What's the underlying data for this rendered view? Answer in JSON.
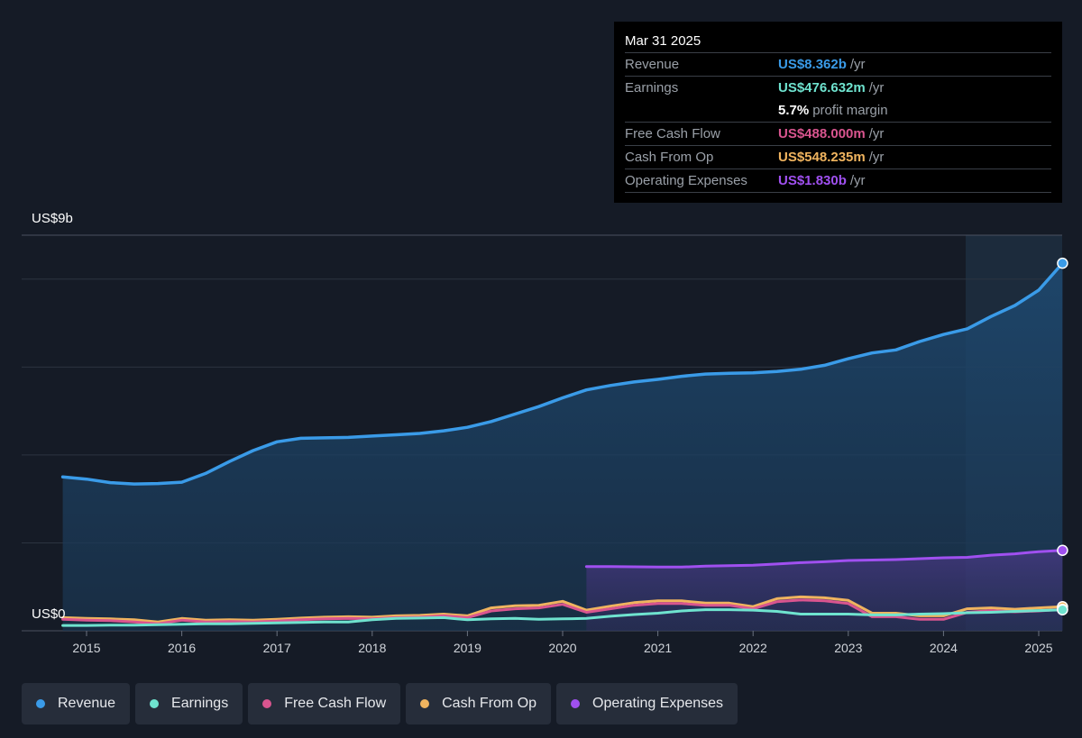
{
  "tooltip": {
    "date": "Mar 31 2025",
    "rows": [
      {
        "label": "Revenue",
        "value": "US$8.362b",
        "unit": "/yr",
        "color": "#3a9be8"
      },
      {
        "label": "Earnings",
        "value": "US$476.632m",
        "unit": "/yr",
        "color": "#6fe3cf"
      },
      {
        "label": "",
        "value": "5.7%",
        "unit": "profit margin",
        "color": "#ffffff"
      },
      {
        "label": "Free Cash Flow",
        "value": "US$488.000m",
        "unit": "/yr",
        "color": "#d9558f"
      },
      {
        "label": "Cash From Op",
        "value": "US$548.235m",
        "unit": "/yr",
        "color": "#f0b45f"
      },
      {
        "label": "Operating Expenses",
        "value": "US$1.830b",
        "unit": "/yr",
        "color": "#a050f0"
      }
    ]
  },
  "legend": [
    {
      "label": "Revenue",
      "color": "#3a9be8"
    },
    {
      "label": "Earnings",
      "color": "#6fe3cf"
    },
    {
      "label": "Free Cash Flow",
      "color": "#d9558f"
    },
    {
      "label": "Cash From Op",
      "color": "#f0b45f"
    },
    {
      "label": "Operating Expenses",
      "color": "#a050f0"
    }
  ],
  "chart_data": {
    "type": "line",
    "y_top_label": "US$9b",
    "y_bottom_label": "US$0",
    "ylim": [
      0,
      9
    ],
    "xlim": [
      2014.75,
      2025.25
    ],
    "x_ticks": [
      "2015",
      "2016",
      "2017",
      "2018",
      "2019",
      "2020",
      "2021",
      "2022",
      "2023",
      "2024",
      "2025"
    ],
    "series": [
      {
        "name": "Revenue",
        "color": "#3a9be8",
        "area": true,
        "x": [
          2014.75,
          2015.0,
          2015.25,
          2015.5,
          2015.75,
          2016.0,
          2016.25,
          2016.5,
          2016.75,
          2017.0,
          2017.25,
          2017.5,
          2017.75,
          2018.0,
          2018.25,
          2018.5,
          2018.75,
          2019.0,
          2019.25,
          2019.5,
          2019.75,
          2020.0,
          2020.25,
          2020.5,
          2020.75,
          2021.0,
          2021.25,
          2021.5,
          2021.75,
          2022.0,
          2022.25,
          2022.5,
          2022.75,
          2023.0,
          2023.25,
          2023.5,
          2023.75,
          2024.0,
          2024.25,
          2024.5,
          2024.75,
          2025.0,
          2025.25
        ],
        "y": [
          3.5,
          3.45,
          3.37,
          3.34,
          3.35,
          3.38,
          3.58,
          3.85,
          4.1,
          4.3,
          4.38,
          4.39,
          4.4,
          4.43,
          4.46,
          4.49,
          4.55,
          4.63,
          4.76,
          4.93,
          5.1,
          5.3,
          5.48,
          5.58,
          5.66,
          5.72,
          5.79,
          5.84,
          5.86,
          5.87,
          5.9,
          5.95,
          6.04,
          6.19,
          6.32,
          6.39,
          6.58,
          6.74,
          6.87,
          7.15,
          7.4,
          7.75,
          8.362
        ]
      },
      {
        "name": "Operating Expenses",
        "color": "#a050f0",
        "area": true,
        "x": [
          2020.25,
          2020.5,
          2020.75,
          2021.0,
          2021.25,
          2021.5,
          2021.75,
          2022.0,
          2022.25,
          2022.5,
          2022.75,
          2023.0,
          2023.25,
          2023.5,
          2023.75,
          2024.0,
          2024.25,
          2024.5,
          2024.75,
          2025.0,
          2025.25
        ],
        "y": [
          1.46,
          1.46,
          1.455,
          1.45,
          1.45,
          1.47,
          1.48,
          1.49,
          1.52,
          1.55,
          1.57,
          1.6,
          1.61,
          1.62,
          1.64,
          1.66,
          1.67,
          1.72,
          1.75,
          1.8,
          1.83
        ]
      },
      {
        "name": "Earnings",
        "color": "#6fe3cf",
        "area": false,
        "x": [
          2014.75,
          2015.0,
          2015.25,
          2015.5,
          2015.75,
          2016.0,
          2016.25,
          2016.5,
          2016.75,
          2017.0,
          2017.25,
          2017.5,
          2017.75,
          2018.0,
          2018.25,
          2018.5,
          2018.75,
          2019.0,
          2019.25,
          2019.5,
          2019.75,
          2020.0,
          2020.25,
          2020.5,
          2020.75,
          2021.0,
          2021.25,
          2021.5,
          2021.75,
          2022.0,
          2022.25,
          2022.5,
          2022.75,
          2023.0,
          2023.25,
          2023.5,
          2023.75,
          2024.0,
          2024.25,
          2024.5,
          2024.75,
          2025.0,
          2025.25
        ],
        "y": [
          0.12,
          0.12,
          0.13,
          0.13,
          0.14,
          0.15,
          0.16,
          0.16,
          0.17,
          0.18,
          0.19,
          0.2,
          0.2,
          0.25,
          0.28,
          0.29,
          0.3,
          0.25,
          0.27,
          0.28,
          0.26,
          0.27,
          0.28,
          0.33,
          0.37,
          0.4,
          0.45,
          0.48,
          0.48,
          0.47,
          0.44,
          0.38,
          0.38,
          0.38,
          0.36,
          0.36,
          0.38,
          0.39,
          0.41,
          0.42,
          0.44,
          0.46,
          0.477
        ]
      },
      {
        "name": "Free Cash Flow",
        "color": "#d9558f",
        "area": false,
        "x": [
          2014.75,
          2015.0,
          2015.25,
          2015.5,
          2015.75,
          2016.0,
          2016.25,
          2016.5,
          2016.75,
          2017.0,
          2017.25,
          2017.5,
          2017.75,
          2018.0,
          2018.25,
          2018.5,
          2018.75,
          2019.0,
          2019.25,
          2019.5,
          2019.75,
          2020.0,
          2020.25,
          2020.5,
          2020.75,
          2021.0,
          2021.25,
          2021.5,
          2021.75,
          2022.0,
          2022.25,
          2022.5,
          2022.75,
          2023.0,
          2023.25,
          2023.5,
          2023.75,
          2024.0,
          2024.25,
          2024.5,
          2024.75,
          2025.0,
          2025.25
        ],
        "y": [
          0.26,
          0.24,
          0.23,
          0.2,
          0.16,
          0.24,
          0.2,
          0.21,
          0.2,
          0.22,
          0.25,
          0.27,
          0.28,
          0.27,
          0.3,
          0.31,
          0.34,
          0.3,
          0.45,
          0.5,
          0.52,
          0.6,
          0.42,
          0.5,
          0.58,
          0.62,
          0.62,
          0.58,
          0.58,
          0.5,
          0.66,
          0.7,
          0.68,
          0.62,
          0.32,
          0.32,
          0.26,
          0.26,
          0.42,
          0.46,
          0.43,
          0.45,
          0.488
        ]
      },
      {
        "name": "Cash From Op",
        "color": "#f0b45f",
        "area": false,
        "x": [
          2014.75,
          2015.0,
          2015.25,
          2015.5,
          2015.75,
          2016.0,
          2016.25,
          2016.5,
          2016.75,
          2017.0,
          2017.25,
          2017.5,
          2017.75,
          2018.0,
          2018.25,
          2018.5,
          2018.75,
          2019.0,
          2019.25,
          2019.5,
          2019.75,
          2020.0,
          2020.25,
          2020.5,
          2020.75,
          2021.0,
          2021.25,
          2021.5,
          2021.75,
          2022.0,
          2022.25,
          2022.5,
          2022.75,
          2023.0,
          2023.25,
          2023.5,
          2023.75,
          2024.0,
          2024.25,
          2024.5,
          2024.75,
          2025.0,
          2025.25
        ],
        "y": [
          0.3,
          0.28,
          0.27,
          0.25,
          0.2,
          0.28,
          0.24,
          0.25,
          0.24,
          0.26,
          0.29,
          0.31,
          0.32,
          0.31,
          0.34,
          0.35,
          0.38,
          0.34,
          0.52,
          0.57,
          0.58,
          0.67,
          0.47,
          0.56,
          0.64,
          0.68,
          0.68,
          0.63,
          0.63,
          0.55,
          0.73,
          0.77,
          0.75,
          0.69,
          0.4,
          0.4,
          0.34,
          0.34,
          0.5,
          0.52,
          0.49,
          0.52,
          0.548
        ]
      }
    ],
    "grid": true,
    "legend_position": "bottom-left"
  }
}
